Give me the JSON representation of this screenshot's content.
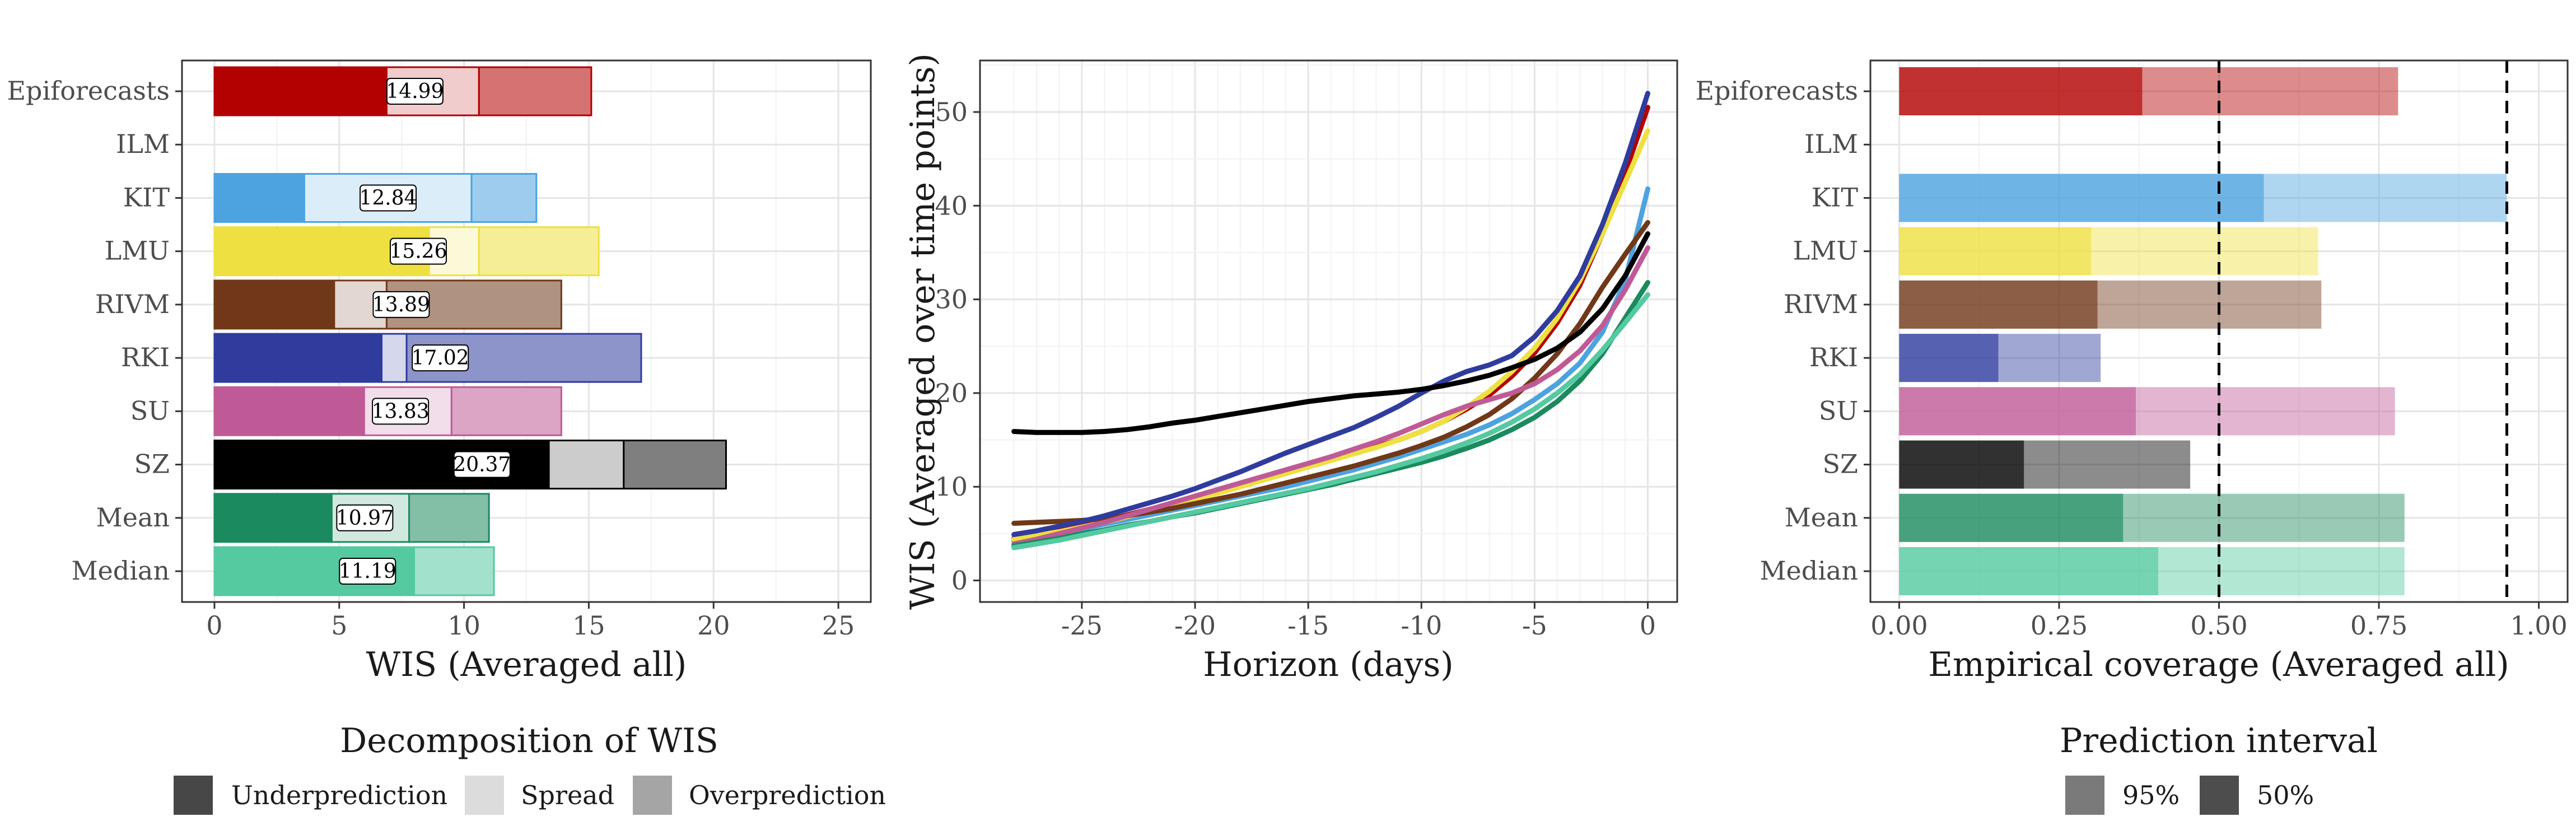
{
  "chart_data": [
    {
      "type": "bar",
      "subtype": "stacked-horizontal",
      "categories": [
        "Epiforecasts",
        "ILM",
        "KIT",
        "LMU",
        "RIVM",
        "RKI",
        "SU",
        "SZ",
        "Mean",
        "Median"
      ],
      "colors": [
        "#b30000",
        null,
        "#4ca3e0",
        "#eee040",
        "#703818",
        "#2f3c9e",
        "#c05a96",
        "#000000",
        "#1b8a5e",
        "#55c9a0"
      ],
      "components": [
        "Underprediction",
        "Spread",
        "Overprediction"
      ],
      "underprediction": [
        6.9,
        null,
        3.6,
        8.6,
        4.8,
        6.7,
        6.0,
        13.4,
        4.7,
        8.0
      ],
      "spread": [
        3.7,
        null,
        6.7,
        2.0,
        2.1,
        1.0,
        3.5,
        3.0,
        3.1,
        0.0
      ],
      "overprediction": [
        4.5,
        null,
        2.6,
        4.8,
        7.0,
        9.4,
        4.4,
        4.1,
        3.2,
        3.2
      ],
      "totals": [
        "14.99",
        null,
        "12.84",
        "15.26",
        "13.89",
        "17.02",
        "13.83",
        "20.37",
        "10.97",
        "11.19"
      ],
      "xlabel": "WIS (Averaged all)",
      "xlim": [
        0,
        25
      ],
      "xticks": [
        0,
        5,
        10,
        15,
        20,
        25
      ],
      "grid": true
    },
    {
      "type": "line",
      "x": [
        -28,
        -27,
        -26,
        -25,
        -24,
        -23,
        -22,
        -21,
        -20,
        -19,
        -18,
        -17,
        -16,
        -15,
        -14,
        -13,
        -12,
        -11,
        -10,
        -9,
        -8,
        -7,
        -6,
        -5,
        -4,
        -3,
        -2,
        -1,
        0
      ],
      "series": [
        {
          "color": "#b30000",
          "values": [
            4.5,
            4.9,
            5.4,
            5.9,
            6.4,
            7.0,
            7.6,
            8.2,
            8.9,
            9.5,
            10.2,
            10.9,
            11.7,
            12.4,
            13.0,
            13.6,
            14.3,
            15.0,
            15.9,
            17.0,
            18.3,
            19.8,
            21.8,
            24.3,
            27.5,
            31.5,
            37.0,
            43.5,
            50.5
          ]
        },
        {
          "color": "#4ca3e0",
          "values": [
            4.2,
            4.6,
            5.0,
            5.5,
            6.0,
            6.5,
            7.0,
            7.5,
            8.0,
            8.5,
            9.0,
            9.5,
            10.0,
            10.6,
            11.2,
            11.8,
            12.5,
            13.2,
            14.0,
            14.8,
            15.6,
            16.6,
            17.8,
            19.3,
            21.0,
            23.2,
            26.5,
            32.0,
            41.8
          ]
        },
        {
          "color": "#eee040",
          "values": [
            4.4,
            4.8,
            5.2,
            5.7,
            6.2,
            6.8,
            7.4,
            8.0,
            8.6,
            9.3,
            10.0,
            10.7,
            11.4,
            12.1,
            12.8,
            13.5,
            14.2,
            15.0,
            15.9,
            17.0,
            18.5,
            20.2,
            22.3,
            24.8,
            28.0,
            32.0,
            37.0,
            42.5,
            48.0
          ]
        },
        {
          "color": "#703818",
          "values": [
            6.1,
            6.2,
            6.3,
            6.4,
            6.6,
            6.9,
            7.3,
            7.7,
            8.2,
            8.7,
            9.2,
            9.8,
            10.4,
            11.0,
            11.6,
            12.2,
            12.9,
            13.6,
            14.4,
            15.3,
            16.4,
            17.7,
            19.4,
            21.6,
            24.2,
            27.4,
            31.3,
            34.8,
            38.2
          ]
        },
        {
          "color": "#2f3c9e",
          "values": [
            4.9,
            5.3,
            5.8,
            6.3,
            6.9,
            7.6,
            8.3,
            9.0,
            9.8,
            10.7,
            11.6,
            12.6,
            13.6,
            14.5,
            15.4,
            16.3,
            17.4,
            18.6,
            20.0,
            21.3,
            22.3,
            23.0,
            24.0,
            26.0,
            28.8,
            32.5,
            38.0,
            44.5,
            52.0
          ]
        },
        {
          "color": "#c05a96",
          "values": [
            3.9,
            4.4,
            5.0,
            5.6,
            6.2,
            6.9,
            7.6,
            8.3,
            9.0,
            9.7,
            10.4,
            11.1,
            11.8,
            12.5,
            13.2,
            14.0,
            14.8,
            15.7,
            16.7,
            17.7,
            18.6,
            19.3,
            20.0,
            21.0,
            22.5,
            24.5,
            27.2,
            31.0,
            35.5
          ]
        },
        {
          "color": "#000000",
          "values": [
            15.9,
            15.8,
            15.8,
            15.8,
            15.9,
            16.1,
            16.4,
            16.8,
            17.1,
            17.5,
            17.9,
            18.3,
            18.7,
            19.1,
            19.4,
            19.7,
            19.9,
            20.1,
            20.4,
            20.8,
            21.3,
            21.9,
            22.7,
            23.6,
            24.8,
            26.5,
            29.0,
            32.5,
            37.0
          ]
        },
        {
          "color": "#1b8a5e",
          "values": [
            3.7,
            4.1,
            4.5,
            5.0,
            5.4,
            5.9,
            6.3,
            6.8,
            7.2,
            7.7,
            8.2,
            8.7,
            9.2,
            9.7,
            10.2,
            10.8,
            11.4,
            12.0,
            12.6,
            13.3,
            14.1,
            15.0,
            16.1,
            17.4,
            19.1,
            21.3,
            24.2,
            28.0,
            31.8
          ]
        },
        {
          "color": "#55c9a0",
          "values": [
            3.5,
            3.9,
            4.3,
            4.8,
            5.3,
            5.8,
            6.3,
            6.8,
            7.3,
            7.8,
            8.3,
            8.8,
            9.3,
            9.8,
            10.4,
            11.0,
            11.6,
            12.3,
            13.0,
            13.8,
            14.7,
            15.7,
            16.9,
            18.3,
            20.0,
            22.0,
            24.6,
            27.5,
            30.5
          ]
        }
      ],
      "xlabel": "Horizon (days)",
      "ylabel": "WIS (Averaged over time points)",
      "xlim": [
        -29.5,
        1.3
      ],
      "ylim": [
        -2.3,
        55.5
      ],
      "xticks": [
        -25,
        -20,
        -15,
        -10,
        -5,
        0
      ],
      "xtick_labels": [
        "-25",
        "-20",
        "-15",
        "-10",
        "-5",
        "0"
      ],
      "yticks": [
        0,
        10,
        20,
        30,
        40,
        50
      ],
      "grid": true
    },
    {
      "type": "bar",
      "subtype": "overlaid-horizontal",
      "categories": [
        "Epiforecasts",
        "ILM",
        "KIT",
        "LMU",
        "RIVM",
        "RKI",
        "SU",
        "SZ",
        "Mean",
        "Median"
      ],
      "colors": [
        "#b30000",
        null,
        "#4ca3e0",
        "#eee040",
        "#703818",
        "#2f3c9e",
        "#c05a96",
        "#000000",
        "#1b8a5e",
        "#55c9a0"
      ],
      "coverage_50": [
        0.38,
        null,
        0.57,
        0.3,
        0.31,
        0.155,
        0.37,
        0.195,
        0.35,
        0.405
      ],
      "coverage_95": [
        0.78,
        null,
        0.95,
        0.655,
        0.66,
        0.315,
        0.775,
        0.455,
        0.79,
        0.79
      ],
      "reference_lines": [
        0.5,
        0.95
      ],
      "xlabel": "Empirical coverage (Averaged all)",
      "xlim": [
        -0.045,
        1.045
      ],
      "xticks": [
        0,
        0.25,
        0.5,
        0.75,
        1
      ],
      "xtick_labels": [
        "0.00",
        "0.25",
        "0.50",
        "0.75",
        "1.00"
      ],
      "grid": true
    }
  ],
  "legends": {
    "wis": {
      "title": "Decomposition of WIS",
      "items": [
        {
          "label": "Underprediction",
          "color": "#474747"
        },
        {
          "label": "Spread",
          "color": "#dcdcdc"
        },
        {
          "label": "Overprediction",
          "color": "#a5a5a5"
        }
      ]
    },
    "interval": {
      "title": "Prediction interval",
      "items": [
        {
          "label": "95%",
          "color": "#7a7a7a"
        },
        {
          "label": "50%",
          "color": "#4d4d4d"
        }
      ]
    }
  }
}
